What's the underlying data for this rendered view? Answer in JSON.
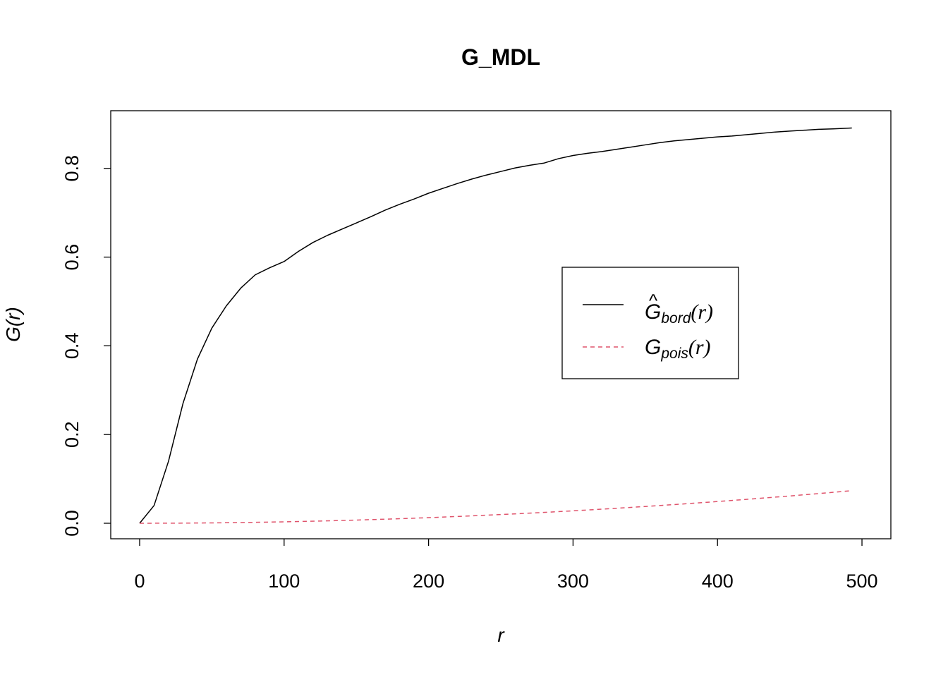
{
  "chart_data": {
    "type": "line",
    "title": "G_MDL",
    "xlabel": "r",
    "ylabel": "G(r)",
    "xlim": [
      -20,
      520
    ],
    "ylim": [
      -0.035,
      0.93
    ],
    "x_ticks": [
      0,
      100,
      200,
      300,
      400,
      500
    ],
    "x_tick_labels": [
      "0",
      "100",
      "200",
      "300",
      "400",
      "500"
    ],
    "y_ticks": [
      0.0,
      0.2,
      0.4,
      0.6,
      0.8
    ],
    "y_tick_labels": [
      "0.0",
      "0.2",
      "0.4",
      "0.6",
      "0.8"
    ],
    "grid": false,
    "legend_position": "center-right",
    "series": [
      {
        "name": "Ĝbord(r)",
        "legend_main": "G",
        "legend_hat": "^",
        "legend_sub": "bord",
        "legend_arg": "(r)",
        "color": "#000000",
        "dash": "solid",
        "x": [
          0,
          10,
          20,
          30,
          40,
          50,
          60,
          70,
          80,
          90,
          100,
          110,
          120,
          130,
          140,
          150,
          160,
          170,
          180,
          190,
          200,
          210,
          220,
          230,
          240,
          250,
          260,
          270,
          280,
          290,
          300,
          310,
          320,
          330,
          340,
          350,
          360,
          370,
          380,
          390,
          400,
          410,
          420,
          430,
          440,
          450,
          460,
          470,
          480,
          493
        ],
        "y": [
          0.0,
          0.04,
          0.14,
          0.27,
          0.37,
          0.44,
          0.49,
          0.53,
          0.56,
          0.576,
          0.59,
          0.613,
          0.633,
          0.649,
          0.663,
          0.677,
          0.691,
          0.706,
          0.719,
          0.731,
          0.744,
          0.755,
          0.766,
          0.776,
          0.785,
          0.793,
          0.801,
          0.807,
          0.812,
          0.822,
          0.829,
          0.834,
          0.838,
          0.843,
          0.848,
          0.853,
          0.858,
          0.862,
          0.865,
          0.868,
          0.871,
          0.873,
          0.876,
          0.879,
          0.882,
          0.884,
          0.886,
          0.888,
          0.889,
          0.891
        ]
      },
      {
        "name": "Gpois(r)",
        "legend_main": "G",
        "legend_hat": "",
        "legend_sub": "pois",
        "legend_arg": "(r)",
        "color": "#DF536B",
        "dash": "dashed",
        "x": [
          0,
          25,
          50,
          75,
          100,
          125,
          150,
          175,
          200,
          225,
          250,
          275,
          300,
          325,
          350,
          375,
          400,
          425,
          450,
          475,
          493
        ],
        "y": [
          0.0,
          0.0002,
          0.0008,
          0.0018,
          0.0032,
          0.005,
          0.0072,
          0.0097,
          0.0126,
          0.016,
          0.0196,
          0.0236,
          0.028,
          0.0327,
          0.0378,
          0.0432,
          0.049,
          0.0551,
          0.0615,
          0.0683,
          0.0735
        ]
      }
    ]
  }
}
